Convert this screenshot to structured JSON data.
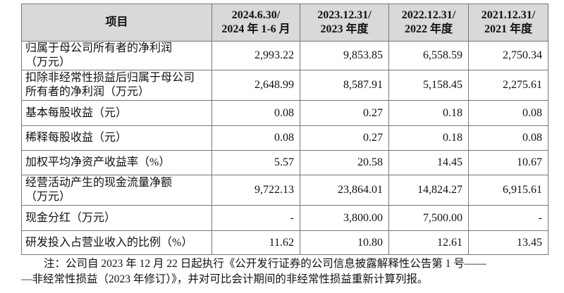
{
  "table": {
    "header": [
      [
        "项目"
      ],
      [
        "2024.6.30/",
        "2024 年 1-6 月"
      ],
      [
        "2023.12.31/",
        "2023 年度"
      ],
      [
        "2022.12.31/",
        "2022 年度"
      ],
      [
        "2021.12.31/",
        "2021 年度"
      ]
    ],
    "rows": [
      [
        [
          "归属于母公司所有者的净利润",
          "（万元）"
        ],
        "2,993.22",
        "9,853.85",
        "6,558.59",
        "2,750.34"
      ],
      [
        [
          "扣除非经常性损益后归属于母公司",
          "所有者的净利润（万元）"
        ],
        "2,648.99",
        "8,587.91",
        "5,158.45",
        "2,275.61"
      ],
      [
        [
          "基本每股收益（元）"
        ],
        "0.08",
        "0.27",
        "0.18",
        "0.08"
      ],
      [
        [
          "稀释每股收益（元）"
        ],
        "0.08",
        "0.27",
        "0.18",
        "0.08"
      ],
      [
        [
          "加权平均净资产收益率（%）"
        ],
        "5.57",
        "20.58",
        "14.45",
        "10.67"
      ],
      [
        [
          "经营活动产生的现金流量净额",
          "（万元）"
        ],
        "9,722.13",
        "23,864.01",
        "14,824.27",
        "6,915.61"
      ],
      [
        [
          "现金分红（万元）"
        ],
        "-",
        "3,800.00",
        "7,500.00",
        "-"
      ],
      [
        [
          "研发投入占营业收入的比例（%）"
        ],
        "11.62",
        "10.80",
        "12.61",
        "13.45"
      ]
    ]
  },
  "note": [
    "注：公司自 2023 年 12 月 22 日起执行《公开发行证券的公司信息披露解释性公告第 1 号——",
    "—非经常性损益（2023 年修订）》，并对可比会计期间的非经常性损益重新计算列报。"
  ]
}
